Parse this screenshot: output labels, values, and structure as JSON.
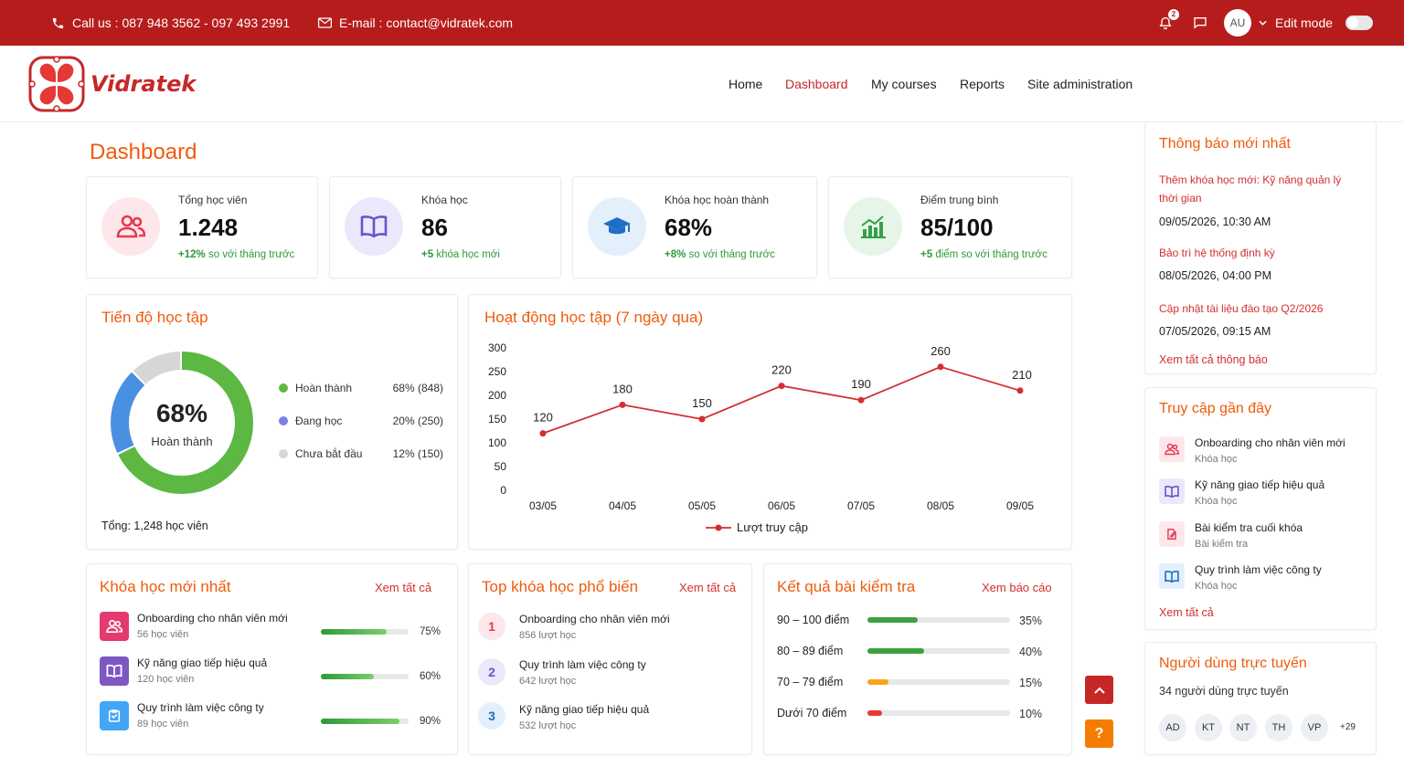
{
  "topbar": {
    "phone": "Call us : 087 948 3562 - 097 493 2991",
    "email": "E-mail : contact@vidratek.com",
    "notification_count": "2",
    "avatar": "AU",
    "edit_mode": "Edit mode"
  },
  "brand": {
    "name": "Vidratek"
  },
  "nav": {
    "home": "Home",
    "dashboard": "Dashboard",
    "my_courses": "My courses",
    "reports": "Reports",
    "site_admin": "Site administration"
  },
  "page_title": "Dashboard",
  "stats": [
    {
      "label": "Tổng học viên",
      "value": "1.248",
      "sub_bold": "+12%",
      "sub": "so với tháng trước",
      "icon": "users-icon",
      "bg": "#fde7ea",
      "color": "#e53950"
    },
    {
      "label": "Khóa học",
      "value": "86",
      "sub_bold": "+5",
      "sub": "khóa học mới",
      "icon": "book-icon",
      "bg": "#ece8fb",
      "color": "#6c52c9"
    },
    {
      "label": "Khóa học hoàn thành",
      "value": "68%",
      "sub_bold": "+8%",
      "sub": "so với tháng trước",
      "icon": "graduation-cap-icon",
      "bg": "#e3f0fc",
      "color": "#1e6fc5"
    },
    {
      "label": "Điểm trung bình",
      "value": "85/100",
      "sub_bold": "+5",
      "sub": "điểm so với tháng trước",
      "icon": "bar-chart-icon",
      "bg": "#e6f5e8",
      "color": "#34a047"
    }
  ],
  "progress": {
    "title": "Tiến độ học tập",
    "center_value": "68%",
    "center_label": "Hoàn thành",
    "total": "Tổng: 1,248 học viên",
    "segments": [
      {
        "label": "Hoàn thành",
        "value": "68% (848)",
        "fraction": 0.68,
        "color": "#5cb843"
      },
      {
        "label": "Đang học",
        "value": "20% (250)",
        "fraction": 0.2,
        "color": "#4a90e2"
      },
      {
        "label": "Chưa bắt đầu",
        "value": "12% (150)",
        "fraction": 0.12,
        "color": "#d6d6d6"
      }
    ]
  },
  "activity": {
    "title": "Hoạt động học tập (7 ngày qua)"
  },
  "chart_data": {
    "type": "line",
    "x": [
      "03/05",
      "04/05",
      "05/05",
      "06/05",
      "07/05",
      "08/05",
      "09/05"
    ],
    "series": [
      {
        "name": "Lượt truy cập",
        "values": [
          120,
          180,
          150,
          220,
          190,
          260,
          210
        ],
        "color": "#d32f2f"
      }
    ],
    "yticks": [
      "0",
      "50",
      "100",
      "150",
      "200",
      "250",
      "300"
    ],
    "ylim": [
      0,
      300
    ],
    "grid": false,
    "legend": "bottom"
  },
  "new_courses": {
    "title": "Khóa học mới nhất",
    "link": "Xem tất cả",
    "items": [
      {
        "title": "Onboarding cho nhân viên mới",
        "sub": "56 học viên",
        "pct": "75%",
        "progress": 0.75,
        "icon": "users-icon",
        "color": "#e53970"
      },
      {
        "title": "Kỹ năng giao tiếp hiệu quả",
        "sub": "120 học viên",
        "pct": "60%",
        "progress": 0.6,
        "icon": "book-icon",
        "color": "#7e57c2"
      },
      {
        "title": "Quy trình làm việc công ty",
        "sub": "89 học viên",
        "pct": "90%",
        "progress": 0.9,
        "icon": "clipboard-icon",
        "color": "#42a5f5"
      }
    ]
  },
  "top_courses": {
    "title": "Top khóa học phổ biến",
    "link": "Xem tất cả",
    "items": [
      {
        "rank": "1",
        "title": "Onboarding cho nhân viên mới",
        "sub": "856 lượt học",
        "bg": "#fde7ea",
        "color": "#e53950"
      },
      {
        "rank": "2",
        "title": "Quy trình làm việc công ty",
        "sub": "642 lượt học",
        "bg": "#ece8fb",
        "color": "#6c52c9"
      },
      {
        "rank": "3",
        "title": "Kỹ năng giao tiếp hiệu quả",
        "sub": "532 lượt học",
        "bg": "#e3f0fc",
        "color": "#1e6fc5"
      }
    ]
  },
  "results": {
    "title": "Kết quả bài kiểm tra",
    "link": "Xem báo cáo",
    "items": [
      {
        "label": "90 – 100 điểm",
        "pct": "35%",
        "fraction": 0.35,
        "color": "#3da142"
      },
      {
        "label": "80 – 89 điểm",
        "pct": "40%",
        "fraction": 0.4,
        "color": "#3da142"
      },
      {
        "label": "70 – 79 điểm",
        "pct": "15%",
        "fraction": 0.15,
        "color": "#f9a51a"
      },
      {
        "label": "Dưới 70 điểm",
        "pct": "10%",
        "fraction": 0.1,
        "color": "#e53935"
      }
    ]
  },
  "notifications": {
    "title": "Thông báo mới nhất",
    "items": [
      {
        "title": "Thêm khóa học mới: Kỹ năng quản lý thời gian",
        "date": "09/05/2026, 10:30 AM"
      },
      {
        "title": "Bảo trì hệ thống định kỳ",
        "date": "08/05/2026, 04:00 PM"
      },
      {
        "title": "Cập nhật tài liệu đào tạo Q2/2026",
        "date": "07/05/2026, 09:15 AM"
      }
    ],
    "link": "Xem tất cả thông báo"
  },
  "recent": {
    "title": "Truy cập gần đây",
    "items": [
      {
        "title": "Onboarding cho nhân viên mới",
        "sub": "Khóa học",
        "icon": "users-icon",
        "bg": "#fde7ea",
        "color": "#e53950"
      },
      {
        "title": "Kỹ năng giao tiếp hiệu quả",
        "sub": "Khóa học",
        "icon": "book-icon",
        "bg": "#ece8fb",
        "color": "#6c52c9"
      },
      {
        "title": "Bài kiểm tra cuối khóa",
        "sub": "Bài kiểm tra",
        "icon": "edit-icon",
        "bg": "#fde7ea",
        "color": "#e53950"
      },
      {
        "title": "Quy trình làm việc công ty",
        "sub": "Khóa học",
        "icon": "book-icon",
        "bg": "#e3f0fc",
        "color": "#1e6fc5"
      }
    ],
    "link": "Xem tất cả"
  },
  "online": {
    "title": "Người dùng trực tuyến",
    "count": "34 người dùng trực tuyến",
    "users": [
      "AD",
      "KT",
      "NT",
      "TH",
      "VP"
    ],
    "more": "+29"
  },
  "fab": {
    "top": "^",
    "help": "?"
  }
}
